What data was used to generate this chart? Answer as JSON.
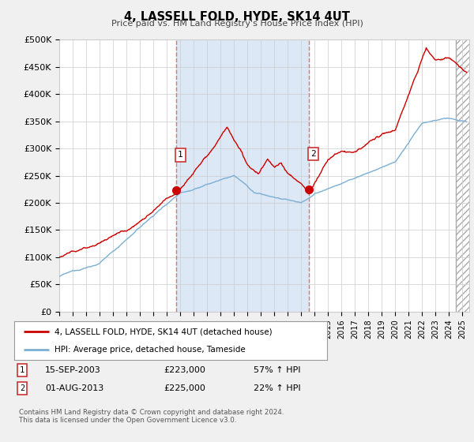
{
  "title": "4, LASSELL FOLD, HYDE, SK14 4UT",
  "subtitle": "Price paid vs. HM Land Registry's House Price Index (HPI)",
  "ylabel_ticks": [
    "£0",
    "£50K",
    "£100K",
    "£150K",
    "£200K",
    "£250K",
    "£300K",
    "£350K",
    "£400K",
    "£450K",
    "£500K"
  ],
  "ytick_vals": [
    0,
    50000,
    100000,
    150000,
    200000,
    250000,
    300000,
    350000,
    400000,
    450000,
    500000
  ],
  "ylim": [
    0,
    500000
  ],
  "xlim_start": 1995.0,
  "xlim_end": 2025.5,
  "xticks": [
    1995,
    1996,
    1997,
    1998,
    1999,
    2000,
    2001,
    2002,
    2003,
    2004,
    2005,
    2006,
    2007,
    2008,
    2009,
    2010,
    2011,
    2012,
    2013,
    2014,
    2015,
    2016,
    2017,
    2018,
    2019,
    2020,
    2021,
    2022,
    2023,
    2024,
    2025
  ],
  "sale1_x": 2003.71,
  "sale1_y": 223000,
  "sale1_label": "1",
  "sale1_date": "15-SEP-2003",
  "sale1_price": "£223,000",
  "sale1_hpi": "57% ↑ HPI",
  "sale2_x": 2013.58,
  "sale2_y": 225000,
  "sale2_label": "2",
  "sale2_date": "01-AUG-2013",
  "sale2_price": "£225,000",
  "sale2_hpi": "22% ↑ HPI",
  "hatch_start": 2024.5,
  "red_line_color": "#cc0000",
  "blue_line_color": "#7bafd4",
  "vline_color": "#e87070",
  "shade_color": "#dce8f5",
  "legend_label_red": "4, LASSELL FOLD, HYDE, SK14 4UT (detached house)",
  "legend_label_blue": "HPI: Average price, detached house, Tameside",
  "footnote": "Contains HM Land Registry data © Crown copyright and database right 2024.\nThis data is licensed under the Open Government Licence v3.0.",
  "fig_bg_color": "#f0f0f0",
  "plot_bg_color": "#ffffff",
  "grid_color": "#cccccc"
}
